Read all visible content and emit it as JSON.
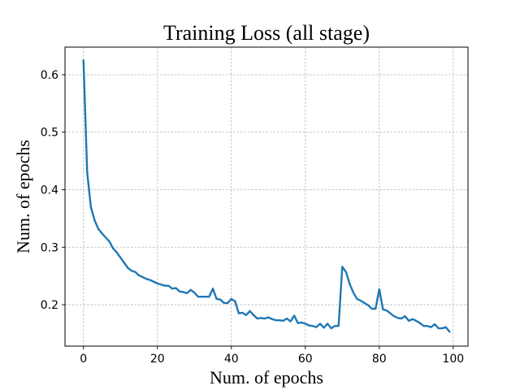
{
  "chart_data": {
    "type": "line",
    "title": "Training Loss (all stage)",
    "xlabel": "Num. of epochs",
    "ylabel": "Num. of epochs",
    "xlim": [
      -5,
      104
    ],
    "ylim": [
      0.128,
      0.648
    ],
    "xticks": [
      0,
      20,
      40,
      60,
      80,
      100
    ],
    "yticks": [
      0.2,
      0.3,
      0.4,
      0.5,
      0.6
    ],
    "xtick_labels": [
      "0",
      "20",
      "40",
      "60",
      "80",
      "100"
    ],
    "ytick_labels": [
      "0.2",
      "0.3",
      "0.4",
      "0.5",
      "0.6"
    ],
    "grid": true,
    "legend": "none",
    "series": [
      {
        "color": "#1f77b4",
        "x": [
          0,
          1,
          2,
          3,
          4,
          5,
          6,
          7,
          8,
          9,
          10,
          11,
          12,
          13,
          14,
          15,
          16,
          17,
          18,
          19,
          20,
          21,
          22,
          23,
          24,
          25,
          26,
          27,
          28,
          29,
          30,
          31,
          32,
          33,
          34,
          35,
          36,
          37,
          38,
          39,
          40,
          41,
          42,
          43,
          44,
          45,
          46,
          47,
          48,
          49,
          50,
          51,
          52,
          53,
          54,
          55,
          56,
          57,
          58,
          59,
          60,
          61,
          62,
          63,
          64,
          65,
          66,
          67,
          68,
          69,
          70,
          71,
          72,
          73,
          74,
          75,
          76,
          77,
          78,
          79,
          80,
          81,
          82,
          83,
          84,
          85,
          86,
          87,
          88,
          89,
          90,
          91,
          92,
          93,
          94,
          95,
          96,
          97,
          98,
          99
        ],
        "y": [
          0.625,
          0.43,
          0.37,
          0.347,
          0.332,
          0.324,
          0.317,
          0.31,
          0.298,
          0.291,
          0.282,
          0.273,
          0.264,
          0.259,
          0.257,
          0.251,
          0.248,
          0.245,
          0.243,
          0.24,
          0.237,
          0.235,
          0.233,
          0.233,
          0.228,
          0.229,
          0.223,
          0.222,
          0.22,
          0.226,
          0.221,
          0.214,
          0.214,
          0.214,
          0.214,
          0.228,
          0.21,
          0.209,
          0.203,
          0.203,
          0.21,
          0.206,
          0.185,
          0.186,
          0.182,
          0.189,
          0.182,
          0.176,
          0.177,
          0.176,
          0.178,
          0.175,
          0.173,
          0.173,
          0.172,
          0.176,
          0.171,
          0.181,
          0.168,
          0.169,
          0.167,
          0.164,
          0.163,
          0.161,
          0.167,
          0.16,
          0.167,
          0.159,
          0.163,
          0.163,
          0.266,
          0.257,
          0.236,
          0.221,
          0.21,
          0.207,
          0.203,
          0.199,
          0.193,
          0.193,
          0.227,
          0.192,
          0.19,
          0.185,
          0.18,
          0.177,
          0.176,
          0.18,
          0.172,
          0.175,
          0.172,
          0.168,
          0.163,
          0.163,
          0.161,
          0.166,
          0.159,
          0.159,
          0.161,
          0.153
        ]
      }
    ]
  }
}
